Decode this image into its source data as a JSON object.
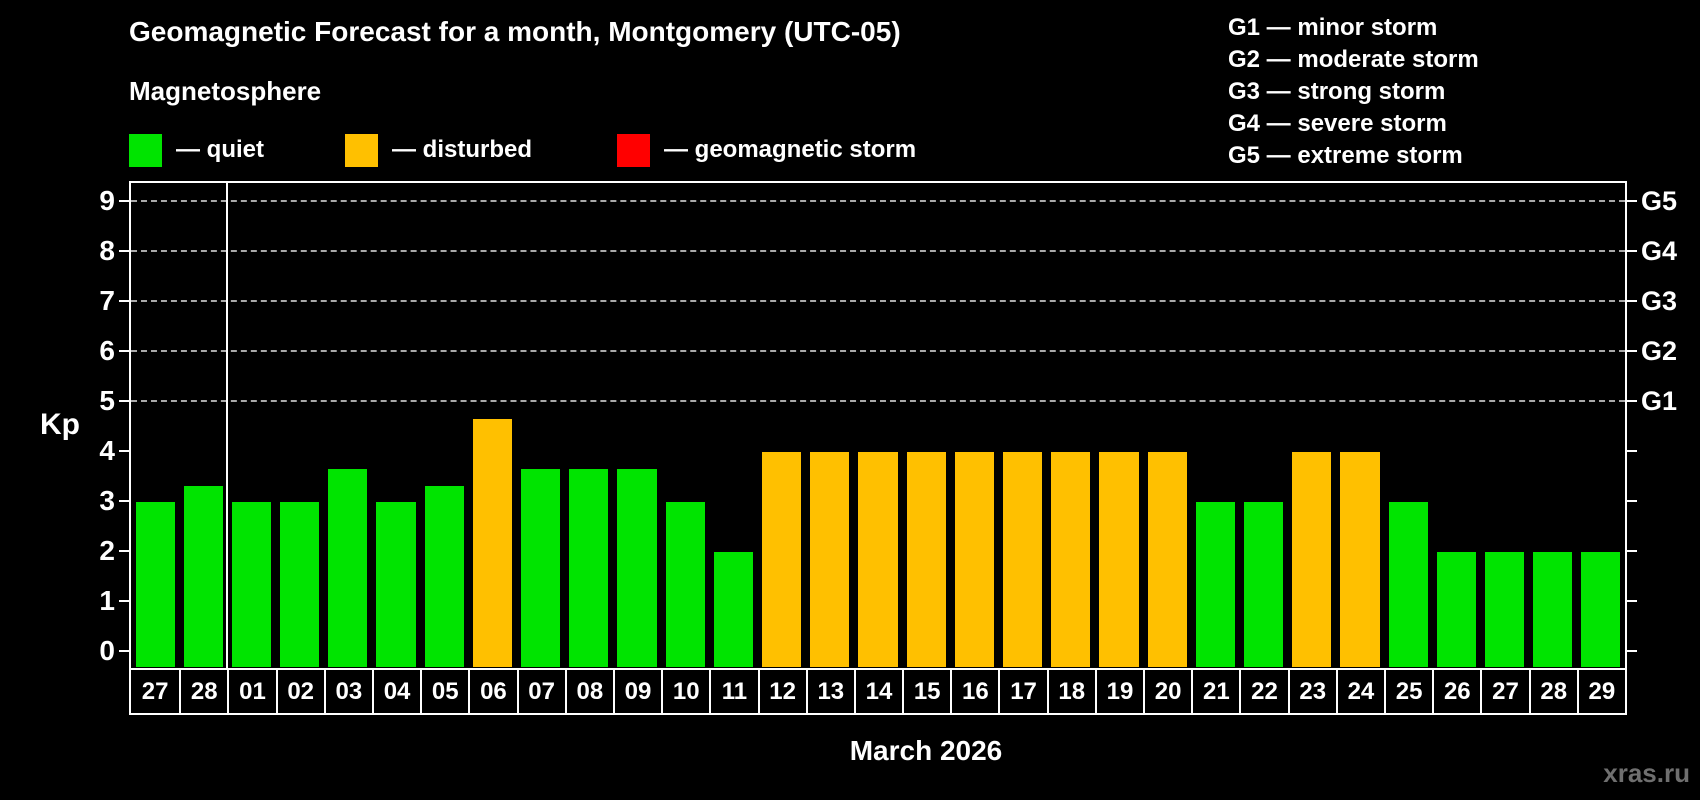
{
  "title": "Geomagnetic Forecast for a month, Montgomery (UTC-05)",
  "subtitle": "Magnetosphere",
  "legend": {
    "items": [
      {
        "name": "quiet",
        "label": "— quiet",
        "color": "#00e400"
      },
      {
        "name": "disturbed",
        "label": "— disturbed",
        "color": "#ffc000"
      },
      {
        "name": "storm",
        "label": "— geomagnetic storm",
        "color": "#ff0000"
      }
    ]
  },
  "g_legend": {
    "lines": [
      "G1 — minor storm",
      "G2 — moderate storm",
      "G3 — strong storm",
      "G4 — severe storm",
      "G5 — extreme storm"
    ]
  },
  "watermark": "xras.ru",
  "chart_data": {
    "type": "bar",
    "title": "Geomagnetic Forecast for a month, Montgomery (UTC-05)",
    "xlabel": "March 2026",
    "ylabel": "Kp",
    "ylim": [
      0,
      9
    ],
    "y_ticks": [
      0,
      1,
      2,
      3,
      4,
      5,
      6,
      7,
      8,
      9
    ],
    "gridlines_at": [
      5,
      6,
      7,
      8,
      9
    ],
    "grid_color": "#a9a9a9",
    "right_axis_labels": [
      {
        "label": "G1",
        "value": 5
      },
      {
        "label": "G2",
        "value": 6
      },
      {
        "label": "G3",
        "value": 7
      },
      {
        "label": "G4",
        "value": 8
      },
      {
        "label": "G5",
        "value": 9
      }
    ],
    "month_separator_after_index": 1,
    "categories": [
      "27",
      "28",
      "01",
      "02",
      "03",
      "04",
      "05",
      "06",
      "07",
      "08",
      "09",
      "10",
      "11",
      "12",
      "13",
      "14",
      "15",
      "16",
      "17",
      "18",
      "19",
      "20",
      "21",
      "22",
      "23",
      "24",
      "25",
      "26",
      "27",
      "28",
      "29"
    ],
    "values": [
      3,
      3.33,
      3,
      3,
      3.67,
      3,
      3.33,
      4.67,
      3.67,
      3.67,
      3.67,
      3,
      2,
      4,
      4,
      4,
      4,
      4,
      4,
      4,
      4,
      4,
      3,
      3,
      4,
      4,
      3,
      2,
      2,
      2,
      2
    ],
    "states": [
      "quiet",
      "quiet",
      "quiet",
      "quiet",
      "quiet",
      "quiet",
      "quiet",
      "disturbed",
      "quiet",
      "quiet",
      "quiet",
      "quiet",
      "quiet",
      "disturbed",
      "disturbed",
      "disturbed",
      "disturbed",
      "disturbed",
      "disturbed",
      "disturbed",
      "disturbed",
      "disturbed",
      "quiet",
      "quiet",
      "disturbed",
      "disturbed",
      "quiet",
      "quiet",
      "quiet",
      "quiet",
      "quiet"
    ],
    "state_colors": {
      "quiet": "#00e400",
      "disturbed": "#ffc000",
      "storm": "#ff0000"
    },
    "legend_position": "top-left",
    "grid": "dashed horizontal at G-levels only"
  }
}
